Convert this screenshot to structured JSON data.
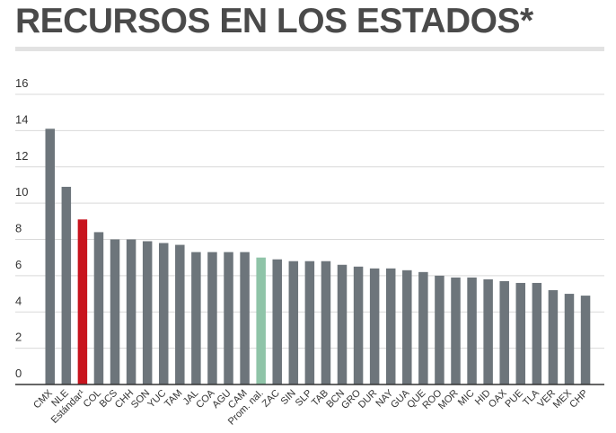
{
  "header": {
    "title": "RECURSOS EN LOS ESTADOS*"
  },
  "chart_data": {
    "type": "bar",
    "title": "RECURSOS EN LOS ESTADOS*",
    "xlabel": "",
    "ylabel": "",
    "ylim": [
      0,
      16
    ],
    "yticks": [
      "0",
      "2",
      "4",
      "6",
      "8",
      "10",
      "12",
      "14",
      "16"
    ],
    "grid": true,
    "legend": "none",
    "colors": {
      "default": "#6d757b",
      "standard": "#c8141e",
      "average": "#8fc4a8",
      "grid": "#d9d9d9",
      "axis": "#333333"
    },
    "categories": [
      "CMX",
      "NLE",
      "Estándar¹",
      "COL",
      "BCS",
      "CHH",
      "SON",
      "YUC",
      "TAM",
      "JAL",
      "COA",
      "AGU",
      "CAM",
      "Prom. nal.",
      "ZAC",
      "SIN",
      "SLP",
      "TAB",
      "BCN",
      "GRO",
      "DUR",
      "NAY",
      "GUA",
      "QUE",
      "ROO",
      "MOR",
      "MIC",
      "HID",
      "OAX",
      "PUE",
      "TLA",
      "VER",
      "MEX",
      "CHP"
    ],
    "values": [
      14.1,
      10.9,
      9.1,
      8.4,
      8.0,
      8.0,
      7.9,
      7.8,
      7.7,
      7.3,
      7.3,
      7.3,
      7.3,
      7.0,
      6.9,
      6.8,
      6.8,
      6.8,
      6.6,
      6.5,
      6.4,
      6.4,
      6.3,
      6.2,
      6.0,
      5.9,
      5.9,
      5.8,
      5.7,
      5.6,
      5.6,
      5.2,
      5.0,
      4.9
    ],
    "highlight": {
      "Estándar¹": "standard",
      "Prom. nal.": "average"
    }
  }
}
